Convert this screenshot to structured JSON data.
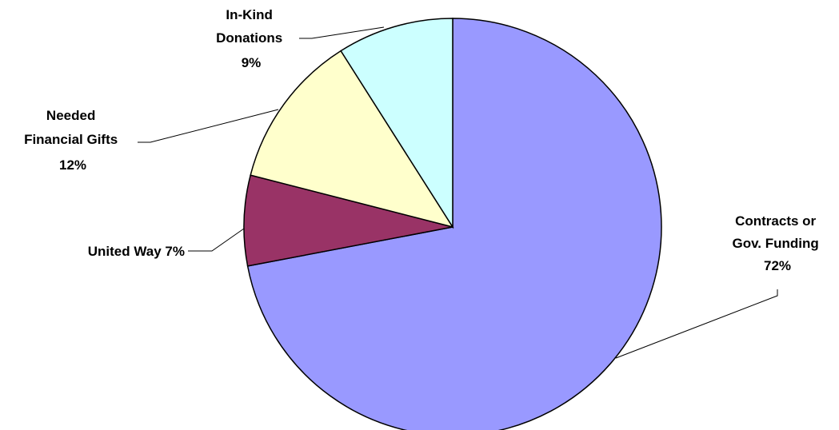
{
  "chart_data": {
    "type": "pie",
    "title": "",
    "slices": [
      {
        "label_lines": [
          "Contracts or",
          "Gov. Funding",
          "72%"
        ],
        "value": 72,
        "color": "#9999ff"
      },
      {
        "label_lines": [
          "United Way 7%"
        ],
        "value": 7,
        "color": "#993366"
      },
      {
        "label_lines": [
          "Needed",
          "Financial Gifts",
          "12%"
        ],
        "value": 12,
        "color": "#ffffcc"
      },
      {
        "label_lines": [
          "In-Kind",
          "Donations",
          "9%"
        ],
        "value": 9,
        "color": "#ccffff"
      }
    ],
    "legend": "none",
    "start_angle": "12 o'clock",
    "direction": "clockwise"
  }
}
